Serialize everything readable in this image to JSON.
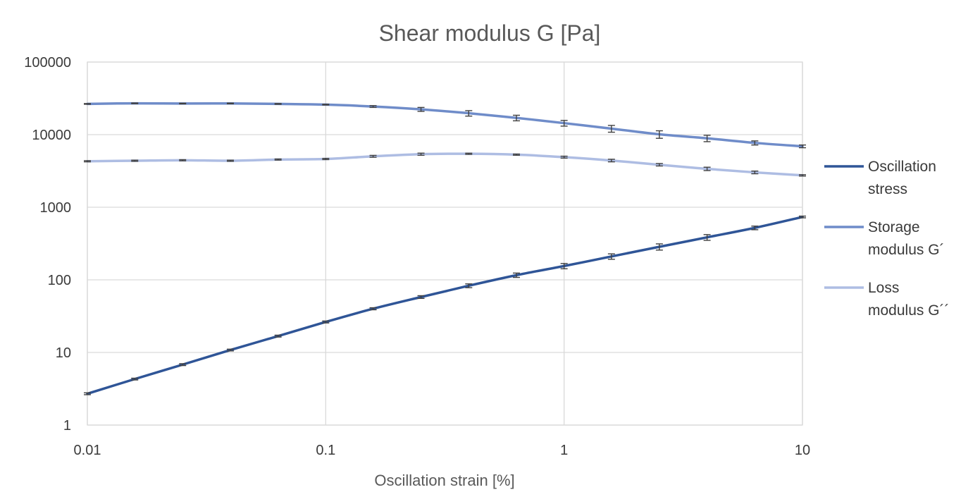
{
  "chart_data": {
    "type": "line",
    "title": "Shear modulus G [Pa]",
    "xlabel": "Oscillation strain [%]",
    "ylabel": "",
    "x_scale": "log",
    "y_scale": "log",
    "xlim": [
      0.01,
      10
    ],
    "ylim": [
      1,
      100000
    ],
    "x_ticks": [
      "0.01",
      "0.1",
      "1",
      "10"
    ],
    "y_ticks": [
      "1",
      "10",
      "100",
      "1000",
      "10000",
      "100000"
    ],
    "grid": true,
    "legend_position": "right",
    "error_bars": true,
    "series": [
      {
        "name": "Oscillation stress",
        "color": "#2f5597",
        "x": [
          0.01,
          0.0158,
          0.0251,
          0.0398,
          0.0631,
          0.1,
          0.158,
          0.251,
          0.398,
          0.631,
          1,
          1.58,
          2.51,
          3.98,
          6.31,
          10
        ],
        "y": [
          2.7,
          4.3,
          6.8,
          10.8,
          16.8,
          26.3,
          40,
          58,
          83,
          116,
          155,
          210,
          285,
          385,
          520,
          735
        ],
        "err": [
          0.08,
          0.12,
          0.2,
          0.3,
          0.5,
          0.8,
          1.3,
          2.5,
          5,
          8,
          13,
          18,
          28,
          35,
          30,
          20
        ]
      },
      {
        "name": "Storage modulus G´",
        "color": "#6f8cc9",
        "x": [
          0.01,
          0.0158,
          0.0251,
          0.0398,
          0.0631,
          0.1,
          0.158,
          0.251,
          0.398,
          0.631,
          1,
          1.58,
          2.51,
          3.98,
          6.31,
          10
        ],
        "y": [
          26500,
          27000,
          26800,
          26900,
          26500,
          25900,
          24400,
          22300,
          19700,
          17000,
          14400,
          12100,
          10100,
          8900,
          7700,
          6900
        ],
        "err": [
          300,
          300,
          300,
          300,
          300,
          300,
          700,
          1400,
          1700,
          1500,
          1300,
          1300,
          1200,
          900,
          500,
          300
        ]
      },
      {
        "name": "Loss modulus G´´",
        "color": "#aebde3",
        "x": [
          0.01,
          0.0158,
          0.0251,
          0.0398,
          0.0631,
          0.1,
          0.158,
          0.251,
          0.398,
          0.631,
          1,
          1.58,
          2.51,
          3.98,
          6.31,
          10
        ],
        "y": [
          4300,
          4370,
          4440,
          4370,
          4540,
          4620,
          5030,
          5380,
          5450,
          5300,
          4900,
          4400,
          3850,
          3380,
          3020,
          2750
        ],
        "err": [
          80,
          80,
          80,
          80,
          80,
          90,
          150,
          180,
          100,
          100,
          150,
          180,
          150,
          180,
          130,
          60
        ]
      }
    ]
  }
}
